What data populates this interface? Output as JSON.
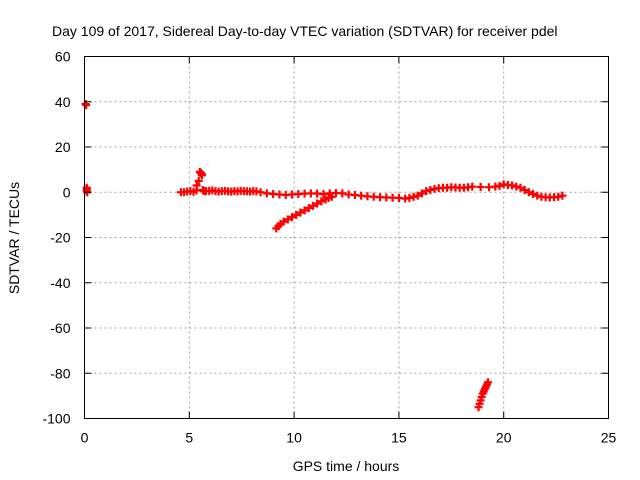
{
  "chart_data": {
    "type": "scatter",
    "title": "Day 109 of 2017, Sidereal Day-to-day VTEC variation (SDTVAR) for receiver pdel",
    "xlabel": "GPS time / hours",
    "ylabel": "SDTVAR / TECUs",
    "xlim": [
      0,
      25
    ],
    "ylim": [
      -100,
      60
    ],
    "xticks": [
      0,
      5,
      10,
      15,
      20,
      25
    ],
    "yticks": [
      -100,
      -80,
      -60,
      -40,
      -20,
      0,
      20,
      40,
      60
    ],
    "xtick_labels": [
      "0",
      "5",
      "10",
      "15",
      "20",
      "25"
    ],
    "ytick_labels": [
      "-100",
      "-80",
      "-60",
      "-40",
      "-20",
      "0",
      "20",
      "40",
      "60"
    ],
    "grid": true,
    "marker": "+",
    "series": [
      {
        "name": "SDTVAR",
        "color": "#ff0000",
        "x": [
          0.05,
          0.08,
          0.1,
          0.1,
          0.12,
          0.13,
          4.6,
          4.75,
          4.9,
          5.05,
          5.2,
          5.35,
          5.35,
          5.45,
          5.5,
          5.55,
          5.6,
          5.6,
          5.65,
          5.7,
          5.8,
          5.95,
          6.1,
          6.25,
          6.4,
          6.55,
          6.7,
          6.85,
          7.0,
          7.15,
          7.3,
          7.45,
          7.6,
          7.75,
          7.9,
          8.05,
          8.2,
          8.4,
          8.7,
          9.0,
          9.3,
          9.6,
          9.9,
          10.2,
          10.5,
          10.8,
          11.1,
          11.4,
          11.7,
          12.0,
          12.3,
          12.6,
          12.9,
          13.2,
          13.5,
          13.8,
          14.1,
          14.4,
          14.7,
          15.0,
          15.3,
          15.5,
          15.7,
          15.9,
          16.1,
          16.3,
          16.5,
          16.7,
          16.9,
          17.1,
          17.3,
          17.5,
          17.7,
          17.9,
          18.1,
          18.3,
          18.5,
          18.9,
          19.3,
          19.6,
          19.8,
          20.0,
          20.2,
          20.4,
          20.6,
          20.8,
          21.0,
          21.2,
          21.4,
          21.6,
          21.8,
          22.0,
          22.2,
          22.4,
          22.6,
          22.8,
          9.15,
          9.25,
          9.35,
          9.5,
          9.7,
          9.9,
          10.1,
          10.3,
          10.5,
          10.7,
          10.9,
          11.1,
          11.3,
          11.5,
          11.65,
          11.8,
          18.8,
          18.85,
          18.9,
          18.95,
          19.0,
          19.05,
          19.1,
          19.15,
          19.2,
          19.25
        ],
        "y": [
          39,
          38.5,
          2,
          0.5,
          1.5,
          0,
          0,
          0,
          0.3,
          0.5,
          0.2,
          0.8,
          3,
          5,
          9,
          8.5,
          8,
          7.5,
          1,
          0.5,
          0.5,
          0.6,
          0.8,
          0.5,
          0.3,
          0.5,
          0.6,
          0.4,
          0.3,
          0.5,
          0.4,
          0.6,
          0.5,
          0.4,
          0.3,
          0.5,
          0.4,
          0,
          -0.5,
          -0.8,
          -1,
          -1.2,
          -1,
          -0.8,
          -0.6,
          -0.5,
          -0.6,
          -0.8,
          -0.5,
          -0.3,
          -0.5,
          -1,
          -1.2,
          -1.5,
          -1.8,
          -2,
          -2.2,
          -2.3,
          -2.4,
          -2.5,
          -2.8,
          -2.5,
          -2,
          -1.5,
          -0.5,
          0.5,
          1,
          1.5,
          1.8,
          2,
          2,
          2.2,
          2.1,
          2,
          2,
          2.2,
          2.5,
          2.3,
          2.2,
          2.5,
          2.8,
          3.5,
          3.2,
          3,
          2.5,
          2,
          1,
          0,
          -0.8,
          -1.5,
          -2,
          -2.2,
          -2.3,
          -2.2,
          -2,
          -1.5,
          -16,
          -15,
          -14,
          -13,
          -12,
          -11,
          -10,
          -9,
          -8,
          -7,
          -6,
          -5,
          -4,
          -3.2,
          -2.5,
          -2,
          -95,
          -93.5,
          -92,
          -90.5,
          -89,
          -88,
          -87,
          -86,
          -85,
          -84
        ]
      }
    ]
  }
}
